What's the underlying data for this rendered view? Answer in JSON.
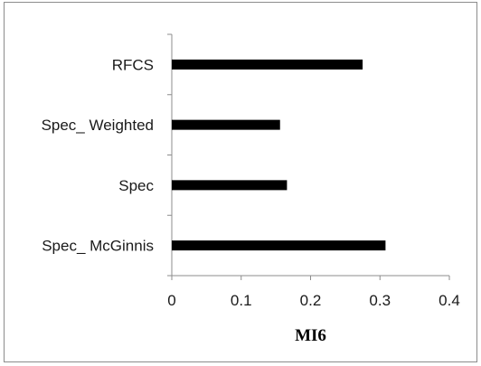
{
  "chart_data": {
    "type": "bar",
    "orientation": "horizontal",
    "categories": [
      "RFCS",
      "Spec_ Weighted",
      "Spec",
      "Spec_ McGinnis"
    ],
    "values": [
      0.275,
      0.156,
      0.166,
      0.308
    ],
    "xlabel": "MI6",
    "ylabel": "",
    "xlim": [
      0,
      0.4
    ],
    "xticks": [
      "0",
      "0.1",
      "0.2",
      "0.3",
      "0.4"
    ],
    "bar_color": "#000000",
    "grid": false,
    "legend": "none"
  }
}
